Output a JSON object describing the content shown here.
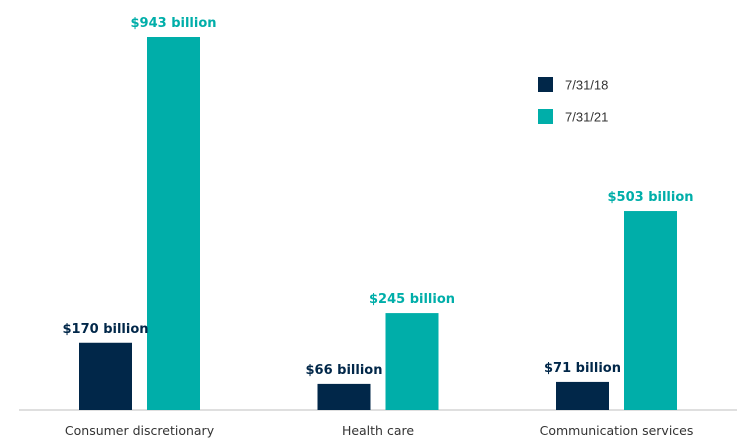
{
  "chart_data": {
    "type": "bar",
    "title": "",
    "xlabel": "",
    "ylabel": "",
    "ylim": [
      0,
      943
    ],
    "grid": false,
    "legend_position": "top-right",
    "categories": [
      "Consumer discretionary",
      "Health care",
      "Communication services"
    ],
    "series": [
      {
        "name": "7/31/18",
        "color": "#012749",
        "values": [
          170,
          66,
          71
        ],
        "labels": [
          "$170 billion",
          "$66 billion",
          "$71 billion"
        ]
      },
      {
        "name": "7/31/21",
        "color": "#00AEA9",
        "values": [
          943,
          245,
          503
        ],
        "labels": [
          "$943 billion",
          "$245 billion",
          "$503 billion"
        ]
      }
    ],
    "unit": "billion USD"
  },
  "colors": {
    "axis": "#cccccc",
    "category_text": "#333333"
  }
}
